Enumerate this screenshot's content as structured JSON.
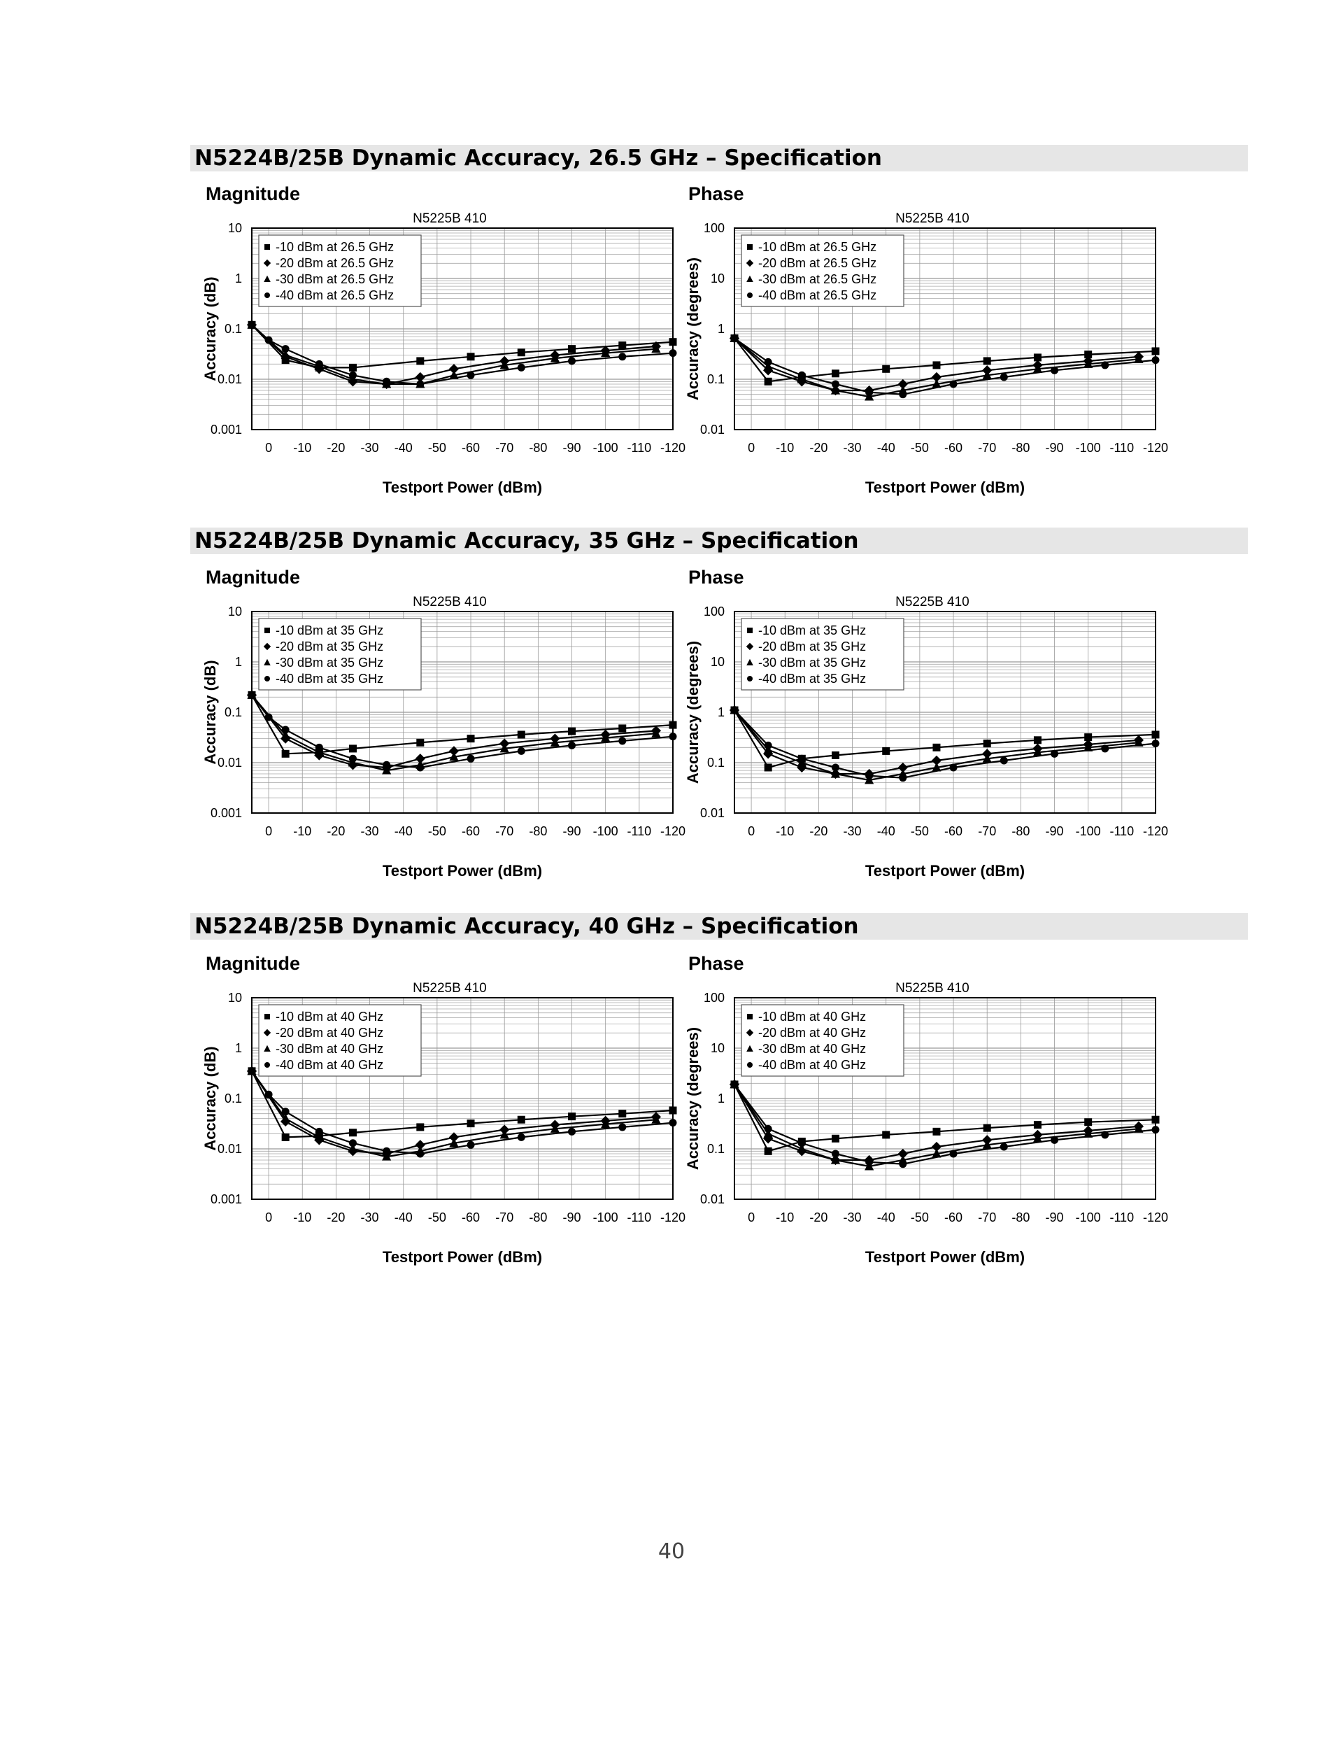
{
  "page_number": "40",
  "sections": [
    {
      "title": "N5224B/25B Dynamic Accuracy, 26.5 GHz – Specification"
    },
    {
      "title": "N5224B/25B Dynamic Accuracy, 35 GHz – Specification"
    },
    {
      "title": "N5224B/25B Dynamic Accuracy, 40 GHz – Specification"
    }
  ],
  "chart_data": [
    {
      "type": "line",
      "heading": "Magnitude",
      "title": "N5225B  410",
      "xlabel": "Testport Power (dBm)",
      "ylabel": "Accuracy (dB)",
      "y_scale": "log",
      "ylim": [
        0.001,
        10
      ],
      "yticks": [
        "10",
        "1",
        "0.1",
        "0.01",
        "0.001"
      ],
      "xlim": [
        5,
        -120
      ],
      "xticks": [
        "0",
        "-10",
        "-20",
        "-30",
        "-40",
        "-50",
        "-60",
        "-70",
        "-80",
        "-90",
        "-100",
        "-110",
        "-120"
      ],
      "grid": true,
      "legend_position": "top-left",
      "series": [
        {
          "name": "-10 dBm at 26.5 GHz",
          "marker": "square",
          "x": [
            5,
            -5,
            -15,
            -25,
            -45,
            -60,
            -75,
            -90,
            -105,
            -120
          ],
          "y": [
            0.12,
            0.024,
            0.017,
            0.017,
            0.023,
            0.028,
            0.034,
            0.04,
            0.047,
            0.055
          ]
        },
        {
          "name": "-20 dBm at 26.5 GHz",
          "marker": "diamond",
          "x": [
            5,
            -5,
            -15,
            -25,
            -35,
            -45,
            -55,
            -70,
            -85,
            -100,
            -115
          ],
          "y": [
            0.12,
            0.028,
            0.016,
            0.009,
            0.008,
            0.011,
            0.016,
            0.023,
            0.03,
            0.037,
            0.045
          ]
        },
        {
          "name": "-30 dBm at 26.5 GHz",
          "marker": "triangle",
          "x": [
            5,
            -5,
            -15,
            -25,
            -35,
            -45,
            -55,
            -70,
            -85,
            -100,
            -115
          ],
          "y": [
            0.12,
            0.03,
            0.018,
            0.01,
            0.008,
            0.008,
            0.012,
            0.019,
            0.026,
            0.033,
            0.04
          ]
        },
        {
          "name": "-40 dBm at 26.5 GHz",
          "marker": "circle",
          "x": [
            5,
            0,
            -5,
            -15,
            -25,
            -35,
            -45,
            -60,
            -75,
            -90,
            -105,
            -120
          ],
          "y": [
            0.12,
            0.06,
            0.04,
            0.02,
            0.012,
            0.009,
            0.008,
            0.012,
            0.017,
            0.023,
            0.028,
            0.033
          ]
        }
      ]
    },
    {
      "type": "line",
      "heading": "Phase",
      "title": "N5225B  410",
      "xlabel": "Testport Power (dBm)",
      "ylabel": "Accuracy (degrees)",
      "y_scale": "log",
      "ylim": [
        0.01,
        100
      ],
      "yticks": [
        "100",
        "10",
        "1",
        "0.1",
        "0.01"
      ],
      "xlim": [
        5,
        -120
      ],
      "xticks": [
        "0",
        "-10",
        "-20",
        "-30",
        "-40",
        "-50",
        "-60",
        "-70",
        "-80",
        "-90",
        "-100",
        "-110",
        "-120"
      ],
      "grid": true,
      "legend_position": "top-left",
      "series": [
        {
          "name": "-10 dBm at 26.5 GHz",
          "marker": "square",
          "x": [
            5,
            -5,
            -15,
            -25,
            -40,
            -55,
            -70,
            -85,
            -100,
            -120
          ],
          "y": [
            0.65,
            0.09,
            0.11,
            0.13,
            0.16,
            0.19,
            0.23,
            0.27,
            0.31,
            0.36
          ]
        },
        {
          "name": "-20 dBm at 26.5 GHz",
          "marker": "diamond",
          "x": [
            5,
            -5,
            -15,
            -25,
            -35,
            -45,
            -55,
            -70,
            -85,
            -100,
            -115
          ],
          "y": [
            0.65,
            0.15,
            0.09,
            0.06,
            0.06,
            0.08,
            0.11,
            0.15,
            0.19,
            0.23,
            0.28
          ]
        },
        {
          "name": "-30 dBm at 26.5 GHz",
          "marker": "triangle",
          "x": [
            5,
            -5,
            -15,
            -25,
            -35,
            -45,
            -55,
            -70,
            -85,
            -100,
            -115
          ],
          "y": [
            0.65,
            0.18,
            0.1,
            0.06,
            0.045,
            0.06,
            0.08,
            0.12,
            0.16,
            0.2,
            0.25
          ]
        },
        {
          "name": "-40 dBm at 26.5 GHz",
          "marker": "circle",
          "x": [
            5,
            -5,
            -15,
            -25,
            -35,
            -45,
            -60,
            -75,
            -90,
            -105,
            -120
          ],
          "y": [
            0.65,
            0.22,
            0.12,
            0.08,
            0.055,
            0.05,
            0.08,
            0.11,
            0.15,
            0.19,
            0.24
          ]
        }
      ]
    },
    {
      "type": "line",
      "heading": "Magnitude",
      "title": "N5225B  410",
      "xlabel": "Testport Power (dBm)",
      "ylabel": "Accuracy (dB)",
      "y_scale": "log",
      "ylim": [
        0.001,
        10
      ],
      "yticks": [
        "10",
        "1",
        "0.1",
        "0.01",
        "0.001"
      ],
      "xlim": [
        5,
        -120
      ],
      "xticks": [
        "0",
        "-10",
        "-20",
        "-30",
        "-40",
        "-50",
        "-60",
        "-70",
        "-80",
        "-90",
        "-100",
        "-110",
        "-120"
      ],
      "grid": true,
      "legend_position": "top-left",
      "series": [
        {
          "name": "-10 dBm at 35 GHz",
          "marker": "square",
          "x": [
            5,
            -5,
            -15,
            -25,
            -45,
            -60,
            -75,
            -90,
            -105,
            -120
          ],
          "y": [
            0.22,
            0.015,
            0.016,
            0.019,
            0.025,
            0.03,
            0.036,
            0.042,
            0.048,
            0.056
          ]
        },
        {
          "name": "-20 dBm at 35 GHz",
          "marker": "diamond",
          "x": [
            5,
            -5,
            -15,
            -25,
            -35,
            -45,
            -55,
            -70,
            -85,
            -100,
            -115
          ],
          "y": [
            0.22,
            0.03,
            0.014,
            0.009,
            0.008,
            0.012,
            0.017,
            0.024,
            0.03,
            0.036,
            0.043
          ]
        },
        {
          "name": "-30 dBm at 35 GHz",
          "marker": "triangle",
          "x": [
            5,
            -5,
            -15,
            -25,
            -35,
            -45,
            -55,
            -70,
            -85,
            -100,
            -115
          ],
          "y": [
            0.22,
            0.035,
            0.016,
            0.01,
            0.007,
            0.009,
            0.013,
            0.019,
            0.025,
            0.031,
            0.038
          ]
        },
        {
          "name": "-40 dBm at 35 GHz",
          "marker": "circle",
          "x": [
            5,
            0,
            -5,
            -15,
            -25,
            -35,
            -45,
            -60,
            -75,
            -90,
            -105,
            -120
          ],
          "y": [
            0.22,
            0.08,
            0.045,
            0.02,
            0.012,
            0.009,
            0.008,
            0.012,
            0.017,
            0.022,
            0.027,
            0.033
          ]
        }
      ]
    },
    {
      "type": "line",
      "heading": "Phase",
      "title": "N5225B  410",
      "xlabel": "Testport Power (dBm)",
      "ylabel": "Accuracy (degrees)",
      "y_scale": "log",
      "ylim": [
        0.01,
        100
      ],
      "yticks": [
        "100",
        "10",
        "1",
        "0.1",
        "0.01"
      ],
      "xlim": [
        5,
        -120
      ],
      "xticks": [
        "0",
        "-10",
        "-20",
        "-30",
        "-40",
        "-50",
        "-60",
        "-70",
        "-80",
        "-90",
        "-100",
        "-110",
        "-120"
      ],
      "grid": true,
      "legend_position": "top-left",
      "series": [
        {
          "name": "-10 dBm at 35 GHz",
          "marker": "square",
          "x": [
            5,
            -5,
            -15,
            -25,
            -40,
            -55,
            -70,
            -85,
            -100,
            -120
          ],
          "y": [
            1.1,
            0.08,
            0.12,
            0.14,
            0.17,
            0.2,
            0.24,
            0.28,
            0.32,
            0.36
          ]
        },
        {
          "name": "-20 dBm at 35 GHz",
          "marker": "diamond",
          "x": [
            5,
            -5,
            -15,
            -25,
            -35,
            -45,
            -55,
            -70,
            -85,
            -100,
            -115
          ],
          "y": [
            1.1,
            0.15,
            0.08,
            0.06,
            0.06,
            0.08,
            0.11,
            0.15,
            0.19,
            0.23,
            0.28
          ]
        },
        {
          "name": "-30 dBm at 35 GHz",
          "marker": "triangle",
          "x": [
            5,
            -5,
            -15,
            -25,
            -35,
            -45,
            -55,
            -70,
            -85,
            -100,
            -115
          ],
          "y": [
            1.1,
            0.18,
            0.1,
            0.06,
            0.045,
            0.06,
            0.08,
            0.12,
            0.16,
            0.2,
            0.25
          ]
        },
        {
          "name": "-40 dBm at 35 GHz",
          "marker": "circle",
          "x": [
            5,
            -5,
            -15,
            -25,
            -35,
            -45,
            -60,
            -75,
            -90,
            -105,
            -120
          ],
          "y": [
            1.1,
            0.22,
            0.12,
            0.08,
            0.055,
            0.05,
            0.08,
            0.11,
            0.15,
            0.19,
            0.24
          ]
        }
      ]
    },
    {
      "type": "line",
      "heading": "Magnitude",
      "title": "N5225B  410",
      "xlabel": "Testport Power (dBm)",
      "ylabel": "Accuracy (dB)",
      "y_scale": "log",
      "ylim": [
        0.001,
        10
      ],
      "yticks": [
        "10",
        "1",
        "0.1",
        "0.01",
        "0.001"
      ],
      "xlim": [
        5,
        -120
      ],
      "xticks": [
        "0",
        "-10",
        "-20",
        "-30",
        "-40",
        "-50",
        "-60",
        "-70",
        "-80",
        "-90",
        "-100",
        "-110",
        "-120"
      ],
      "grid": true,
      "legend_position": "top-left",
      "series": [
        {
          "name": "-10 dBm at 40 GHz",
          "marker": "square",
          "x": [
            5,
            -5,
            -15,
            -25,
            -45,
            -60,
            -75,
            -90,
            -105,
            -120
          ],
          "y": [
            0.35,
            0.017,
            0.018,
            0.021,
            0.027,
            0.032,
            0.038,
            0.044,
            0.05,
            0.058
          ]
        },
        {
          "name": "-20 dBm at 40 GHz",
          "marker": "diamond",
          "x": [
            5,
            -5,
            -15,
            -25,
            -35,
            -45,
            -55,
            -70,
            -85,
            -100,
            -115
          ],
          "y": [
            0.35,
            0.035,
            0.015,
            0.009,
            0.008,
            0.012,
            0.017,
            0.024,
            0.03,
            0.036,
            0.043
          ]
        },
        {
          "name": "-30 dBm at 40 GHz",
          "marker": "triangle",
          "x": [
            5,
            -5,
            -15,
            -25,
            -35,
            -45,
            -55,
            -70,
            -85,
            -100,
            -115
          ],
          "y": [
            0.35,
            0.04,
            0.017,
            0.01,
            0.007,
            0.009,
            0.013,
            0.019,
            0.025,
            0.031,
            0.038
          ]
        },
        {
          "name": "-40 dBm at 40 GHz",
          "marker": "circle",
          "x": [
            5,
            0,
            -5,
            -15,
            -25,
            -35,
            -45,
            -60,
            -75,
            -90,
            -105,
            -120
          ],
          "y": [
            0.35,
            0.12,
            0.055,
            0.022,
            0.013,
            0.009,
            0.008,
            0.012,
            0.017,
            0.022,
            0.027,
            0.033
          ]
        }
      ]
    },
    {
      "type": "line",
      "heading": "Phase",
      "title": "N5225B  410",
      "xlabel": "Testport Power (dBm)",
      "ylabel": "Accuracy (degrees)",
      "y_scale": "log",
      "ylim": [
        0.01,
        100
      ],
      "yticks": [
        "100",
        "10",
        "1",
        "0.1",
        "0.01"
      ],
      "xlim": [
        5,
        -120
      ],
      "xticks": [
        "0",
        "-10",
        "-20",
        "-30",
        "-40",
        "-50",
        "-60",
        "-70",
        "-80",
        "-90",
        "-100",
        "-110",
        "-120"
      ],
      "grid": true,
      "legend_position": "top-left",
      "series": [
        {
          "name": "-10 dBm at 40 GHz",
          "marker": "square",
          "x": [
            5,
            -5,
            -15,
            -25,
            -40,
            -55,
            -70,
            -85,
            -100,
            -120
          ],
          "y": [
            1.9,
            0.09,
            0.14,
            0.16,
            0.19,
            0.22,
            0.26,
            0.3,
            0.34,
            0.38
          ]
        },
        {
          "name": "-20 dBm at 40 GHz",
          "marker": "diamond",
          "x": [
            5,
            -5,
            -15,
            -25,
            -35,
            -45,
            -55,
            -70,
            -85,
            -100,
            -115
          ],
          "y": [
            1.9,
            0.16,
            0.09,
            0.06,
            0.06,
            0.08,
            0.11,
            0.15,
            0.19,
            0.23,
            0.28
          ]
        },
        {
          "name": "-30 dBm at 40 GHz",
          "marker": "triangle",
          "x": [
            5,
            -5,
            -15,
            -25,
            -35,
            -45,
            -55,
            -70,
            -85,
            -100,
            -115
          ],
          "y": [
            1.9,
            0.2,
            0.1,
            0.06,
            0.045,
            0.06,
            0.08,
            0.12,
            0.16,
            0.2,
            0.25
          ]
        },
        {
          "name": "-40 dBm at 40 GHz",
          "marker": "circle",
          "x": [
            5,
            -5,
            -15,
            -25,
            -35,
            -45,
            -60,
            -75,
            -90,
            -105,
            -120
          ],
          "y": [
            1.9,
            0.25,
            0.13,
            0.08,
            0.055,
            0.05,
            0.08,
            0.11,
            0.15,
            0.19,
            0.24
          ]
        }
      ]
    }
  ]
}
